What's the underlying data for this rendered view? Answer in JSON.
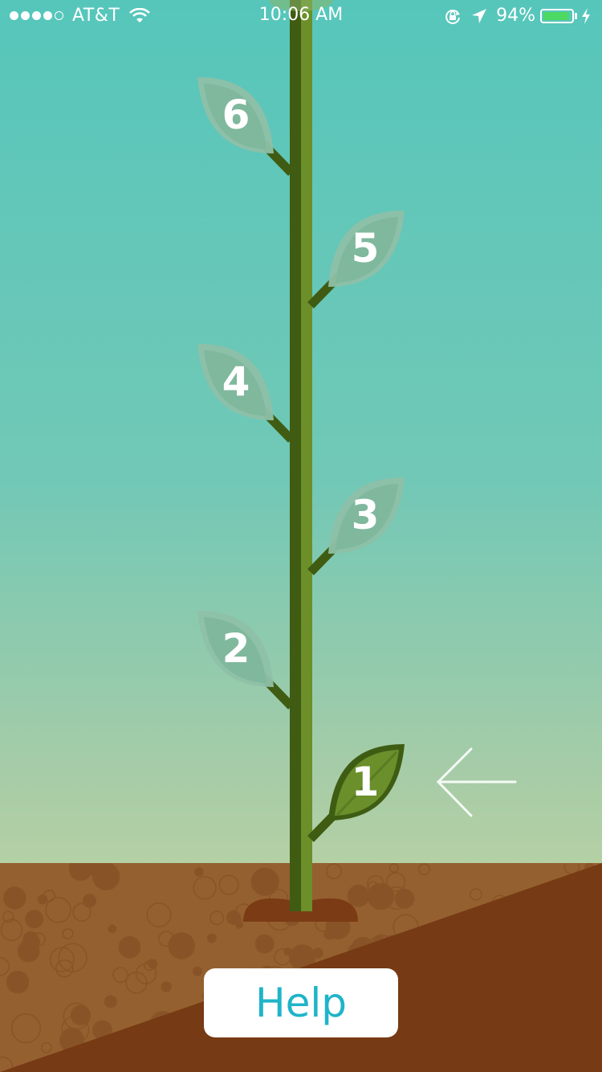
{
  "status_bar": {
    "carrier": "AT&T",
    "signal_bars": 4,
    "signal_max": 5,
    "time": "10:06 AM",
    "battery_percent": "94%",
    "battery_level": 0.94,
    "icons": [
      "wifi-icon",
      "rotation-lock-icon",
      "location-arrow-icon",
      "battery-icon",
      "charging-bolt-icon"
    ]
  },
  "plant": {
    "leaves": [
      {
        "label": "1",
        "state": "active"
      },
      {
        "label": "2",
        "state": "inactive"
      },
      {
        "label": "3",
        "state": "inactive"
      },
      {
        "label": "4",
        "state": "inactive"
      },
      {
        "label": "5",
        "state": "inactive"
      },
      {
        "label": "6",
        "state": "inactive"
      }
    ],
    "current_marker_icon": "arrow-left-icon"
  },
  "help_button": {
    "label": "Help"
  },
  "colors": {
    "sky_top": "#56c6bb",
    "sky_bottom": "#d6d89f",
    "stem_dark": "#3f5c12",
    "stem_light": "#6c8f2a",
    "leaf_active": "#4a6a1a",
    "leaf_inactive": "#8ec0a8",
    "soil_light": "#95602f",
    "soil_dark": "#763a14",
    "help_text": "#1fb4c9"
  }
}
